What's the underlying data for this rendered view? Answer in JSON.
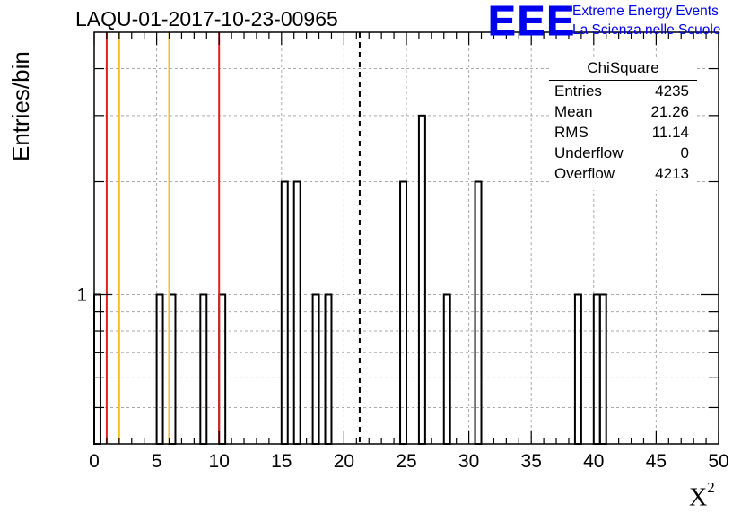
{
  "title": "LAQU-01-2017-10-23-00965",
  "logo": {
    "mark": "EEE",
    "line1": "Extreme Energy Events",
    "line2": "La Scienza nelle Scuole"
  },
  "stats_box": {
    "title": "ChiSquare",
    "rows": [
      {
        "key": "Entries",
        "value": "4235"
      },
      {
        "key": "Mean",
        "value": "21.26"
      },
      {
        "key": "RMS",
        "value": "11.14"
      },
      {
        "key": "Underflow",
        "value": "0"
      },
      {
        "key": "Overflow",
        "value": "4213"
      }
    ]
  },
  "colors": {
    "red_line": "#dd2222",
    "yellow_line": "#f2c21b",
    "histogram": "#000000",
    "grid": "#aaaaaa",
    "logo": "#0000ee"
  },
  "chart_data": {
    "type": "bar",
    "title": "LAQU-01-2017-10-23-00965",
    "xlabel": "X",
    "xlabel_sup": "2",
    "ylabel": "Entries/bin",
    "xlim": [
      0,
      50
    ],
    "ylim": [
      0.4,
      5
    ],
    "y_scale": "log",
    "x_ticks": [
      "0",
      "5",
      "10",
      "15",
      "20",
      "25",
      "30",
      "35",
      "40",
      "45",
      "50"
    ],
    "y_ticks": [
      "1"
    ],
    "grid": true,
    "bin_width": 0.5,
    "bins": [
      {
        "x": 0.0,
        "count": 1
      },
      {
        "x": 5.0,
        "count": 1
      },
      {
        "x": 6.0,
        "count": 1
      },
      {
        "x": 8.5,
        "count": 1
      },
      {
        "x": 10.0,
        "count": 1
      },
      {
        "x": 15.0,
        "count": 2
      },
      {
        "x": 16.0,
        "count": 2
      },
      {
        "x": 17.5,
        "count": 1
      },
      {
        "x": 18.5,
        "count": 1
      },
      {
        "x": 24.5,
        "count": 2
      },
      {
        "x": 26.0,
        "count": 3
      },
      {
        "x": 28.0,
        "count": 1
      },
      {
        "x": 30.5,
        "count": 2
      },
      {
        "x": 38.5,
        "count": 1
      },
      {
        "x": 40.0,
        "count": 1
      },
      {
        "x": 40.5,
        "count": 1
      }
    ],
    "vertical_lines": [
      {
        "x": 1.0,
        "color": "red"
      },
      {
        "x": 2.0,
        "color": "yellow"
      },
      {
        "x": 6.0,
        "color": "yellow"
      },
      {
        "x": 10.0,
        "color": "red"
      },
      {
        "x": 21.26,
        "color": "black",
        "style": "dashed"
      }
    ],
    "legend": "top-right"
  }
}
